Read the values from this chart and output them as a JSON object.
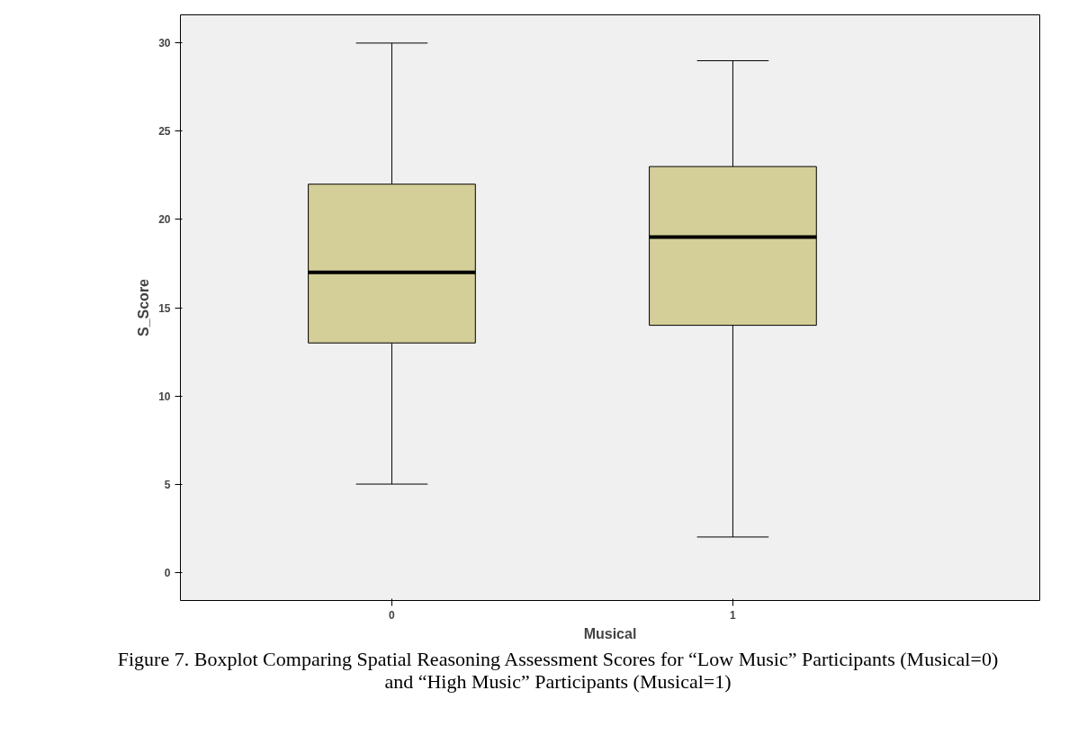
{
  "chart_data": {
    "type": "box",
    "xlabel": "Musical",
    "ylabel": "S_Score",
    "categories": [
      "0",
      "1"
    ],
    "boxes": [
      {
        "low": 5,
        "q1": 13,
        "median": 17,
        "q3": 22,
        "high": 30
      },
      {
        "low": 2,
        "q1": 14,
        "median": 19,
        "q3": 23,
        "high": 29
      }
    ],
    "color": "#d4cf98",
    "ylim": [
      -1.6,
      31.6
    ],
    "yticks": [
      0,
      5,
      10,
      15,
      20,
      25,
      30
    ],
    "grid": false,
    "annotations": [
      "Figure 7. Boxplot Comparing Spatial Reasoning Assessment Scores for “Low Music” Participants (Musical=0) and “High Music” Participants (Musical=1)"
    ]
  }
}
